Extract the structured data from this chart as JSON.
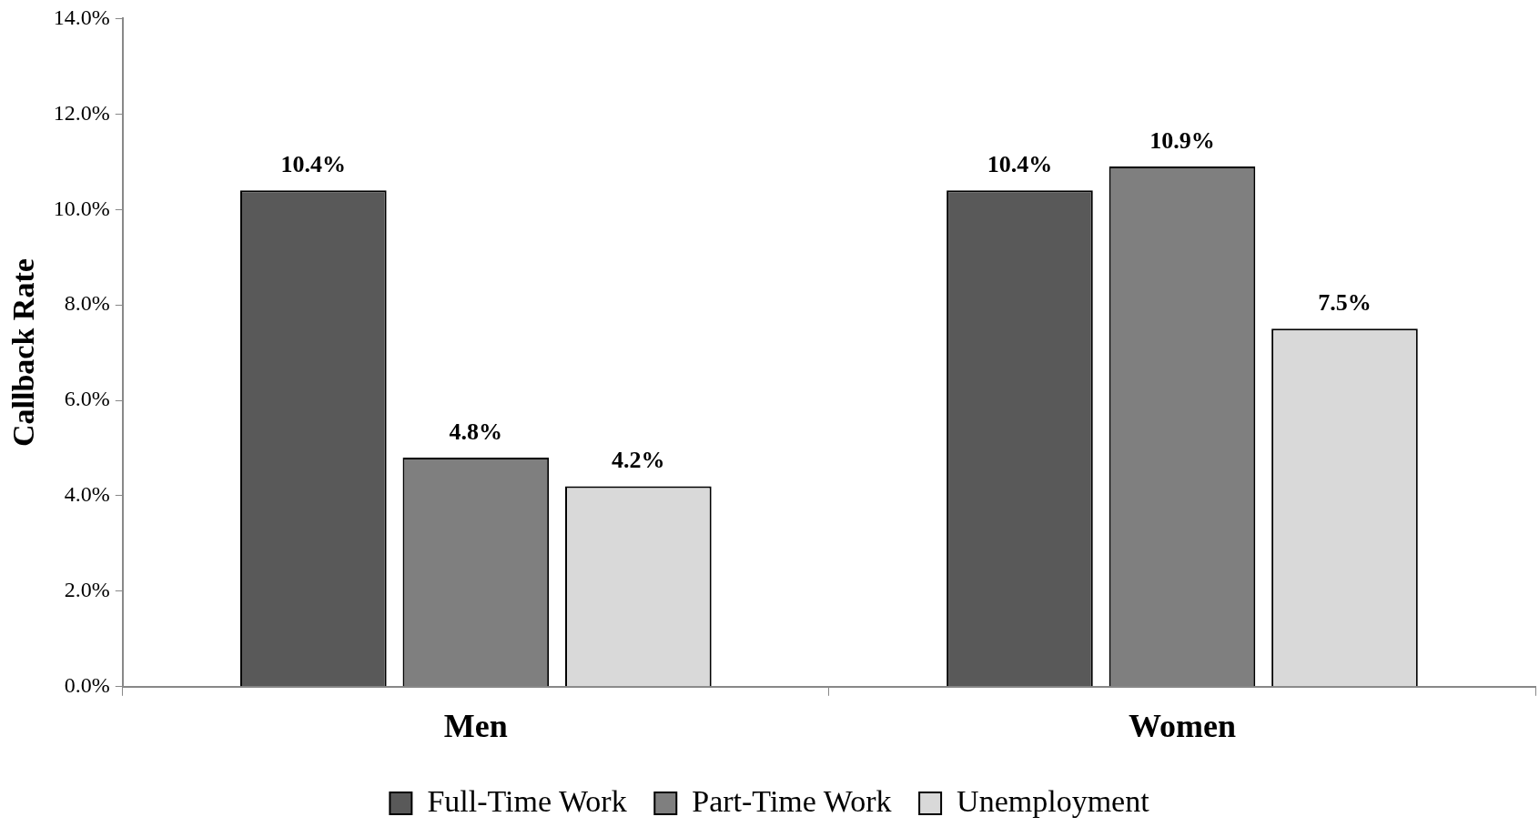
{
  "chart_data": {
    "type": "bar",
    "ylabel": "Callback Rate",
    "categories": [
      "Men",
      "Women"
    ],
    "series": [
      {
        "name": "Full-Time Work",
        "color": "#595959",
        "values": [
          10.4,
          10.4
        ],
        "value_labels": [
          "10.4%",
          "10.4%"
        ]
      },
      {
        "name": "Part-Time Work",
        "color": "#7f7f7f",
        "values": [
          4.8,
          10.9
        ],
        "value_labels": [
          "4.8%",
          "10.9%"
        ]
      },
      {
        "name": "Unemployment",
        "color": "#d9d9d9",
        "values": [
          4.2,
          7.5
        ],
        "value_labels": [
          "4.2%",
          "7.5%"
        ]
      }
    ],
    "ylim": [
      0,
      14
    ],
    "yticks": [
      {
        "value": 0,
        "label": "0.0%"
      },
      {
        "value": 2,
        "label": "2.0%"
      },
      {
        "value": 4,
        "label": "4.0%"
      },
      {
        "value": 6,
        "label": "6.0%"
      },
      {
        "value": 8,
        "label": "8.0%"
      },
      {
        "value": 10,
        "label": "10.0%"
      },
      {
        "value": 12,
        "label": "12.0%"
      },
      {
        "value": 14,
        "label": "14.0%"
      }
    ],
    "grid": false,
    "legend": "bottom"
  }
}
